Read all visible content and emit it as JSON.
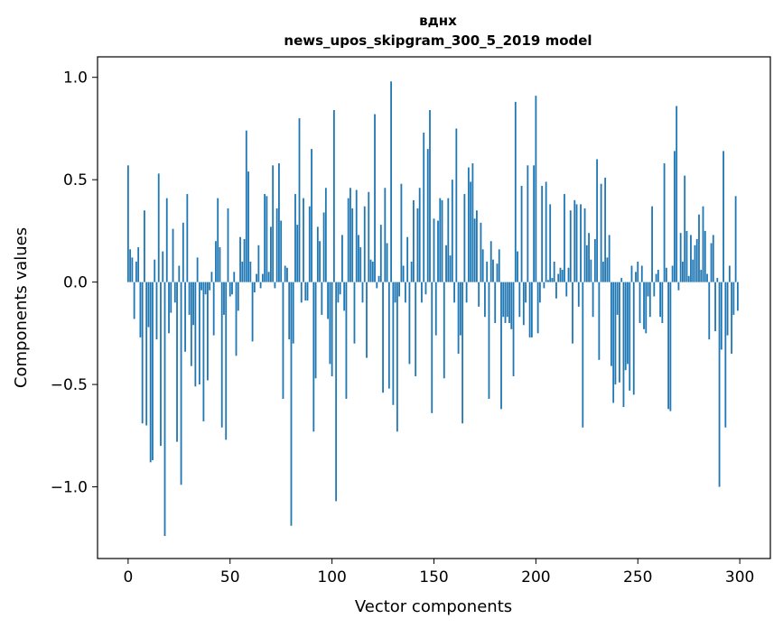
{
  "chart_data": {
    "type": "bar",
    "title_line1": "вднх",
    "title_line2": "news_upos_skipgram_300_5_2019 model",
    "xlabel": "Vector components",
    "ylabel": "Components values",
    "xlim": [
      -15,
      315
    ],
    "ylim": [
      -1.35,
      1.1
    ],
    "x_ticks": [
      0,
      50,
      100,
      150,
      200,
      250,
      300
    ],
    "x_tick_labels": [
      "0",
      "50",
      "100",
      "150",
      "200",
      "250",
      "300"
    ],
    "y_ticks": [
      -1.0,
      -0.5,
      0.0,
      0.5,
      1.0
    ],
    "y_tick_labels": [
      "−1.0",
      "−0.5",
      "0.0",
      "0.5",
      "1.0"
    ],
    "bar_color": "#1f77b4",
    "values": [
      0.57,
      0.16,
      0.12,
      -0.18,
      0.1,
      0.17,
      -0.27,
      -0.69,
      0.35,
      -0.7,
      -0.22,
      -0.88,
      -0.87,
      0.11,
      -0.28,
      0.53,
      -0.8,
      0.15,
      -1.24,
      0.41,
      -0.25,
      -0.15,
      0.26,
      -0.1,
      -0.78,
      0.08,
      -0.99,
      0.29,
      -0.34,
      0.43,
      -0.16,
      -0.41,
      -0.21,
      -0.51,
      0.12,
      -0.5,
      -0.04,
      -0.68,
      -0.06,
      -0.48,
      -0.04,
      0.05,
      -0.26,
      0.2,
      0.41,
      0.17,
      -0.71,
      -0.16,
      -0.77,
      0.36,
      -0.07,
      -0.06,
      0.05,
      -0.36,
      -0.14,
      0.22,
      0.1,
      0.21,
      0.74,
      0.54,
      0.1,
      -0.29,
      -0.05,
      0.04,
      0.18,
      -0.03,
      0.04,
      0.43,
      0.42,
      0.05,
      0.27,
      0.57,
      -0.03,
      0.36,
      0.58,
      0.3,
      -0.57,
      0.08,
      0.07,
      -0.28,
      -1.19,
      -0.3,
      0.43,
      0.28,
      0.8,
      -0.1,
      0.41,
      -0.09,
      -0.09,
      0.37,
      0.65,
      -0.73,
      -0.47,
      0.27,
      0.2,
      -0.16,
      0.34,
      0.46,
      -0.18,
      -0.4,
      -0.46,
      0.84,
      -1.07,
      -0.1,
      -0.06,
      0.23,
      -0.14,
      -0.57,
      0.41,
      0.46,
      0.36,
      -0.3,
      0.45,
      0.23,
      0.17,
      -0.1,
      0.37,
      -0.37,
      0.44,
      0.11,
      0.1,
      0.82,
      -0.03,
      0.03,
      0.28,
      -0.54,
      0.46,
      0.19,
      -0.52,
      0.98,
      -0.6,
      -0.1,
      -0.73,
      -0.07,
      0.48,
      0.08,
      -0.1,
      0.22,
      -0.4,
      0.1,
      0.4,
      -0.46,
      0.36,
      0.46,
      -0.1,
      0.73,
      -0.06,
      0.65,
      0.84,
      -0.64,
      0.31,
      -0.26,
      0.3,
      0.41,
      0.4,
      -0.47,
      0.18,
      0.41,
      0.13,
      0.5,
      -0.1,
      0.75,
      -0.35,
      -0.26,
      -0.69,
      0.43,
      -0.1,
      0.56,
      0.49,
      0.58,
      0.31,
      0.35,
      -0.12,
      0.29,
      0.16,
      -0.17,
      0.1,
      -0.57,
      0.2,
      0.11,
      -0.2,
      0.09,
      0.16,
      -0.62,
      -0.17,
      -0.2,
      -0.17,
      -0.2,
      -0.23,
      -0.46,
      0.88,
      0.15,
      -0.17,
      0.47,
      -0.21,
      -0.1,
      0.57,
      -0.27,
      -0.27,
      0.57,
      0.91,
      -0.25,
      -0.1,
      0.47,
      -0.03,
      0.49,
      0.01,
      0.38,
      0.02,
      0.1,
      -0.08,
      0.04,
      0.07,
      0.06,
      0.43,
      -0.07,
      0.07,
      0.35,
      -0.3,
      0.4,
      0.38,
      -0.12,
      0.38,
      -0.71,
      0.36,
      0.18,
      0.24,
      0.11,
      -0.17,
      0.21,
      0.6,
      -0.38,
      0.48,
      0.1,
      0.51,
      0.12,
      0.23,
      -0.41,
      -0.59,
      -0.5,
      -0.16,
      -0.49,
      0.02,
      -0.61,
      -0.43,
      -0.4,
      -0.53,
      0.08,
      -0.55,
      0.05,
      0.1,
      -0.2,
      0.08,
      -0.23,
      -0.25,
      -0.07,
      -0.17,
      0.37,
      -0.07,
      0.04,
      0.06,
      -0.17,
      -0.2,
      0.58,
      0.07,
      -0.62,
      -0.63,
      0.08,
      0.64,
      0.86,
      -0.04,
      0.24,
      0.1,
      0.52,
      0.25,
      0.03,
      0.23,
      0.11,
      0.18,
      0.21,
      0.33,
      0.06,
      0.37,
      0.25,
      0.04,
      -0.28,
      0.19,
      0.23,
      -0.24,
      0.02,
      -1.0,
      -0.33,
      0.64,
      -0.71,
      -0.26,
      0.08,
      -0.35,
      -0.16,
      0.42,
      -0.14
    ]
  }
}
